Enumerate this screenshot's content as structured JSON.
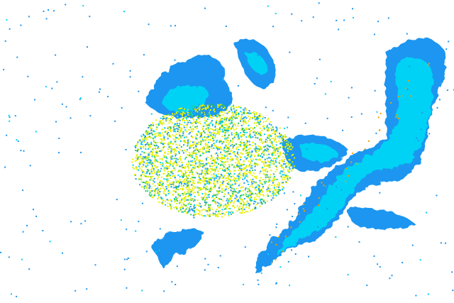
{
  "radar": {
    "background_color": "#ffffff",
    "palette": {
      "light_blue": "#1e96f0",
      "cyan": "#00d2f5",
      "bright_cyan": "#00e6ff",
      "green": "#2ec84a",
      "yellow": "#e6f000",
      "orange": "#f0a000"
    }
  }
}
